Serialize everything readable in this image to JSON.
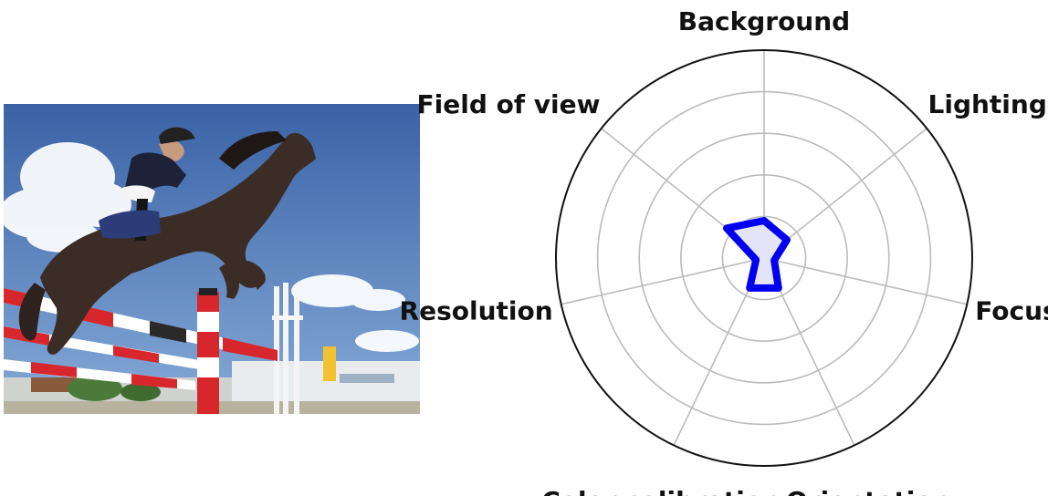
{
  "colors": {
    "sky_top": "#3f67a8",
    "sky_bottom": "#8fb1da",
    "horse": "#3b2c26",
    "rail_red": "#d8262d",
    "rider_jacket": "#1d2238",
    "series_line": "#0000ee",
    "series_fill": "#e4e4f8",
    "grid": "#bbbbbb",
    "frame": "#111111"
  },
  "photo": {
    "subject": "show jumping horse and rider clearing a red and white fence under a blue sky"
  },
  "chart_data": {
    "type": "radar",
    "axes": [
      "Background",
      "Lighting",
      "Focus",
      "Orientation",
      "Color calibration",
      "Resolution",
      "Field of view"
    ],
    "series": [
      {
        "values": [
          0.18,
          0.14,
          0.05,
          0.16,
          0.16,
          0.04,
          0.23
        ]
      }
    ],
    "rlim": [
      0,
      1
    ],
    "rings": [
      0.2,
      0.4,
      0.6,
      0.8
    ],
    "grid": true,
    "legend": "none"
  }
}
